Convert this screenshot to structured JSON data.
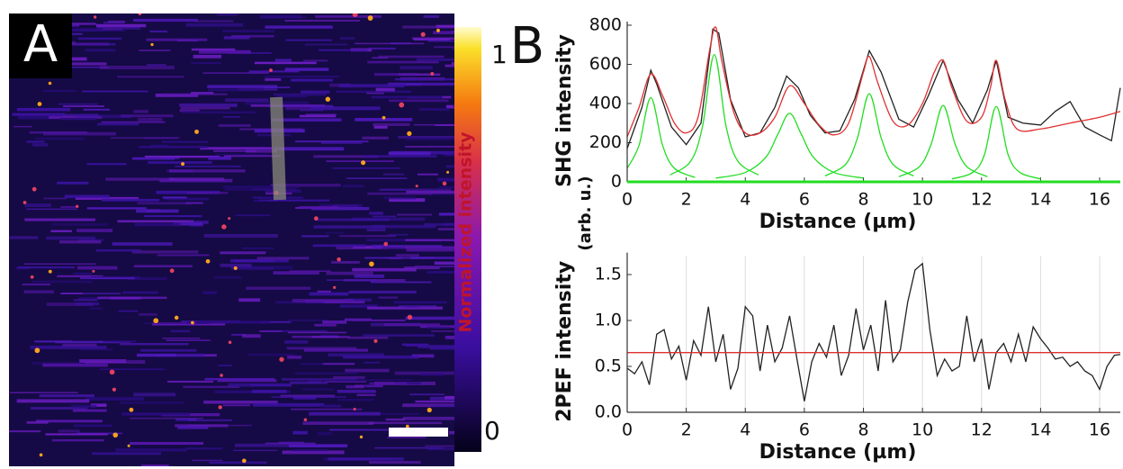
{
  "panel_a": {
    "label": "A",
    "colorbar_max": "1",
    "colorbar_min": "0",
    "colorbar_label": "Normalized intensity"
  },
  "panel_b": {
    "label": "B",
    "shared_y_unit": "(arb. u.)"
  },
  "chart_data": [
    {
      "type": "line",
      "ylabel": "SHG intensity",
      "xlabel": "Distance (µm)",
      "xlim": [
        0,
        16.7
      ],
      "xticks": [
        0,
        2,
        4,
        6,
        8,
        10,
        12,
        14,
        16
      ],
      "ylim": [
        0,
        800
      ],
      "yticks": [
        0,
        200,
        400,
        600,
        800
      ],
      "grid": false,
      "series": [
        {
          "color": "#22dd22",
          "smooth": true,
          "x": [
            0,
            0.4,
            0.8,
            1.2,
            1.6,
            2.3
          ],
          "values": [
            69,
            186,
            430,
            186,
            69,
            22
          ]
        },
        {
          "color": "#22dd22",
          "smooth": true,
          "x": [
            1.45,
            2.15,
            2.55,
            2.95,
            3.35,
            3.75,
            4.45
          ],
          "values": [
            35,
            105,
            282,
            650,
            282,
            105,
            35
          ]
        },
        {
          "color": "#22dd22",
          "smooth": true,
          "x": [
            3,
            4,
            4.7,
            5.1,
            5.5,
            5.9,
            6.3,
            7,
            8
          ],
          "values": [
            19,
            48,
            126,
            242,
            350,
            242,
            126,
            48,
            19
          ]
        },
        {
          "color": "#22dd22",
          "smooth": true,
          "x": [
            6.7,
            7.4,
            7.8,
            8.2,
            8.6,
            9,
            9.7
          ],
          "values": [
            30,
            90,
            225,
            450,
            225,
            90,
            30
          ]
        },
        {
          "color": "#22dd22",
          "smooth": true,
          "x": [
            9.2,
            9.9,
            10.3,
            10.7,
            11.1,
            11.5,
            12.2
          ],
          "values": [
            26,
            78,
            195,
            390,
            195,
            78,
            26
          ]
        },
        {
          "color": "#22dd22",
          "smooth": true,
          "x": [
            11,
            11.7,
            12.1,
            12.5,
            12.9,
            13.3,
            14
          ],
          "values": [
            15,
            48,
            139,
            385,
            139,
            48,
            15
          ]
        },
        {
          "color": "#222222",
          "smooth": false,
          "x": [
            0,
            0.5,
            0.8,
            1,
            1.5,
            2,
            2.5,
            2.9,
            3.1,
            3.5,
            4,
            4.5,
            5,
            5.4,
            5.8,
            6.2,
            6.7,
            7.2,
            7.7,
            8.2,
            8.6,
            9.2,
            9.7,
            10.2,
            10.7,
            11.2,
            11.7,
            12.2,
            12.5,
            12.9,
            13.4,
            14,
            14.5,
            15,
            15.5,
            16,
            16.4,
            16.7
          ],
          "values": [
            170,
            380,
            570,
            500,
            280,
            190,
            300,
            780,
            760,
            420,
            230,
            250,
            380,
            540,
            480,
            340,
            250,
            260,
            420,
            670,
            560,
            320,
            280,
            440,
            620,
            420,
            300,
            470,
            620,
            330,
            300,
            290,
            360,
            410,
            280,
            240,
            210,
            480
          ]
        },
        {
          "color": "#e03030",
          "smooth": true,
          "x": [
            0,
            0.4,
            0.8,
            1.2,
            1.6,
            2,
            2.4,
            2.8,
            3,
            3.2,
            3.6,
            4,
            4.5,
            5,
            5.5,
            6,
            6.5,
            7,
            7.5,
            8,
            8.2,
            8.5,
            9,
            9.5,
            10,
            10.4,
            10.7,
            11,
            11.5,
            12,
            12.3,
            12.5,
            12.8,
            13.2,
            14,
            15,
            16,
            16.7
          ],
          "values": [
            230,
            380,
            550,
            440,
            300,
            250,
            330,
            680,
            790,
            620,
            360,
            250,
            250,
            330,
            490,
            400,
            290,
            240,
            300,
            560,
            640,
            500,
            310,
            290,
            400,
            560,
            620,
            480,
            310,
            330,
            480,
            620,
            420,
            270,
            270,
            300,
            330,
            360
          ]
        }
      ]
    },
    {
      "type": "line",
      "ylabel": "2PEF intensity",
      "xlabel": "Distance (µm)",
      "xlim": [
        0,
        16.7
      ],
      "xticks": [
        0,
        2,
        4,
        6,
        8,
        10,
        12,
        14,
        16
      ],
      "ylim": [
        0,
        1.7
      ],
      "yticks": [
        {
          "value": 0,
          "label": "0.0"
        },
        {
          "value": 0.5,
          "label": "0.5"
        },
        {
          "value": 1,
          "label": "1.0"
        },
        {
          "value": 1.5,
          "label": "1.5"
        }
      ],
      "grid": "x",
      "series": [
        {
          "color": "#222222",
          "smooth": false,
          "x": [
            0,
            0.25,
            0.5,
            0.75,
            1,
            1.25,
            1.5,
            1.75,
            2,
            2.25,
            2.5,
            2.75,
            3,
            3.25,
            3.5,
            3.75,
            4,
            4.25,
            4.5,
            4.75,
            5,
            5.25,
            5.5,
            5.75,
            6,
            6.25,
            6.5,
            6.75,
            7,
            7.25,
            7.5,
            7.75,
            8,
            8.25,
            8.5,
            8.75,
            9,
            9.25,
            9.5,
            9.75,
            10,
            10.25,
            10.5,
            10.75,
            11,
            11.25,
            11.5,
            11.75,
            12,
            12.25,
            12.5,
            12.75,
            13,
            13.25,
            13.5,
            13.75,
            14,
            14.25,
            14.5,
            14.75,
            15,
            15.25,
            15.5,
            15.75,
            16,
            16.25,
            16.5,
            16.7
          ],
          "values": [
            0.48,
            0.42,
            0.55,
            0.3,
            0.85,
            0.9,
            0.58,
            0.72,
            0.35,
            0.78,
            0.62,
            1.15,
            0.55,
            0.85,
            0.25,
            0.48,
            1.15,
            1.05,
            0.45,
            0.95,
            0.55,
            0.7,
            1.05,
            0.58,
            0.12,
            0.55,
            0.75,
            0.6,
            0.95,
            0.4,
            0.62,
            1.13,
            0.68,
            0.95,
            0.45,
            1.22,
            0.55,
            0.68,
            1.2,
            1.55,
            1.62,
            0.9,
            0.4,
            0.58,
            0.45,
            0.5,
            1.05,
            0.55,
            0.8,
            0.25,
            0.65,
            0.75,
            0.55,
            0.85,
            0.55,
            0.93,
            0.8,
            0.7,
            0.58,
            0.6,
            0.5,
            0.55,
            0.45,
            0.4,
            0.25,
            0.5,
            0.62,
            0.63
          ]
        },
        {
          "color": "#e03030",
          "smooth": false,
          "x": [
            0,
            16.7
          ],
          "values": [
            0.65,
            0.65
          ]
        }
      ]
    }
  ]
}
